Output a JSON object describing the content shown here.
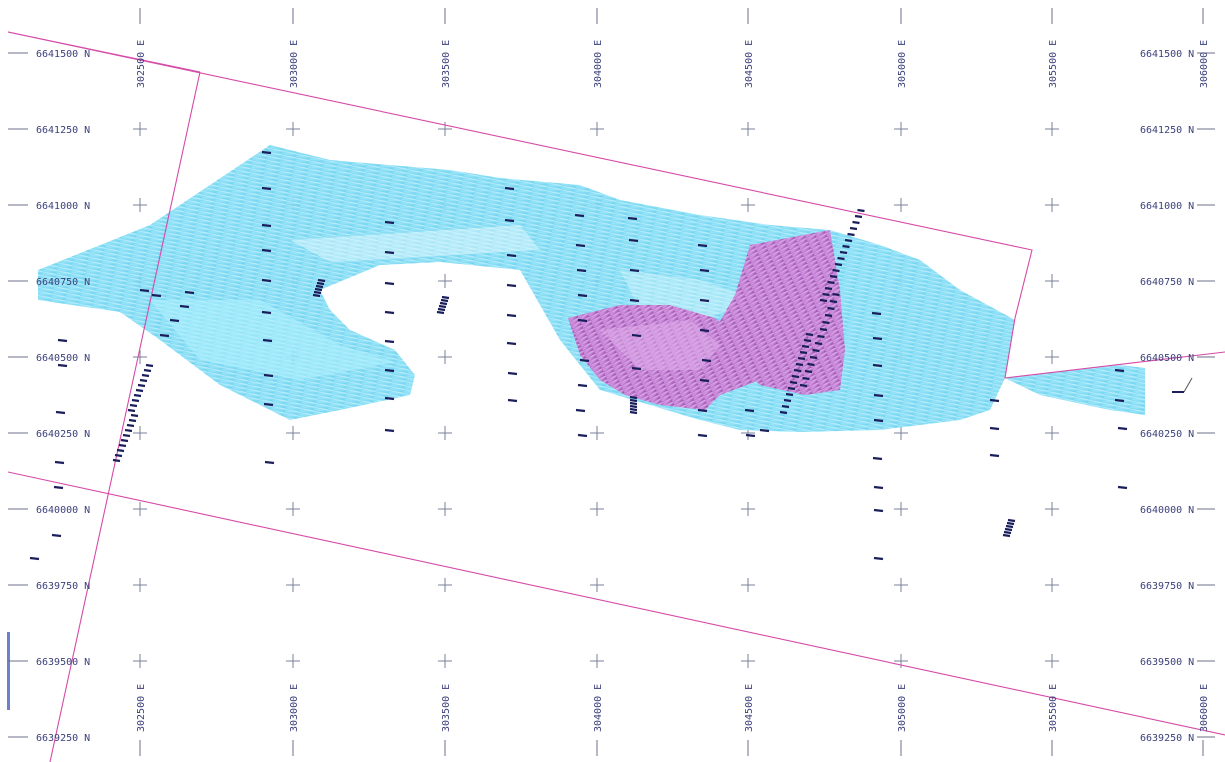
{
  "map": {
    "northing_labels": [
      "6641500 N",
      "6641250 N",
      "6641000 N",
      "6640750 N",
      "6640500 N",
      "6640250 N",
      "6640000 N",
      "6639750 N",
      "6639500 N",
      "6639250 N"
    ],
    "easting_labels": [
      "302500 E",
      "303000 E",
      "303500 E",
      "304000 E",
      "304500 E",
      "305000 E",
      "305500 E",
      "306000 E"
    ],
    "colors": {
      "solid_body_a": "#6fd9f2",
      "solid_body_b": "#a9ecfb",
      "solid_body_c": "#c4a2e6",
      "magenta_body": "#a03da8",
      "boundary": "#d64aa8",
      "drillhole": "#1a1f5c",
      "grid": "#7a7f99",
      "labels": "#3a3f7a"
    }
  }
}
